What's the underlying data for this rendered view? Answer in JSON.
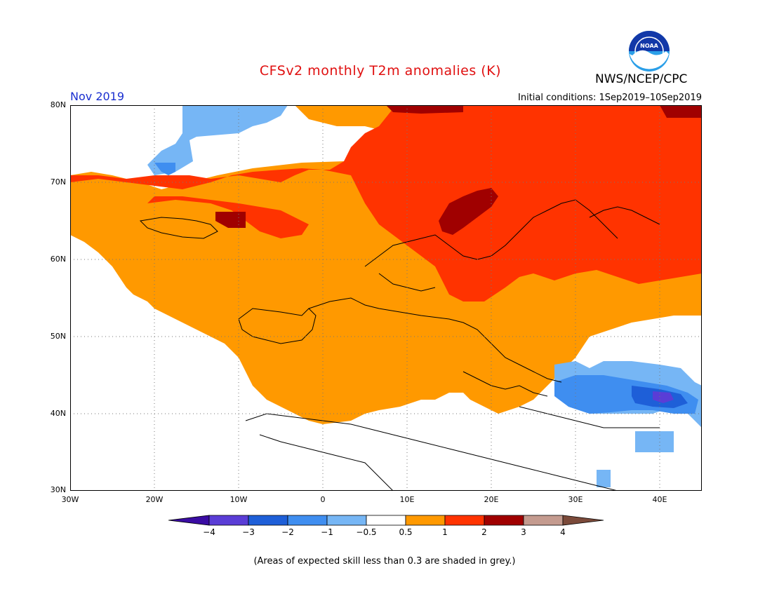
{
  "title": "CFSv2 monthly T2m anomalies (K)",
  "period": "Nov 2019",
  "initial_conditions": "Initial conditions: 1Sep2019–10Sep2019",
  "agency": "NWS/NCEP/CPC",
  "logo": {
    "name": "noaa-logo",
    "text": "NOAA",
    "icon": "noaa-seal"
  },
  "map": {
    "extent": {
      "lon_min": -30,
      "lon_max": 45,
      "lat_min": 30,
      "lat_max": 80
    },
    "lat_labels": [
      {
        "value": 80,
        "text": "80N"
      },
      {
        "value": 70,
        "text": "70N"
      },
      {
        "value": 60,
        "text": "60N"
      },
      {
        "value": 50,
        "text": "50N"
      },
      {
        "value": 40,
        "text": "40N"
      },
      {
        "value": 30,
        "text": "30N"
      }
    ],
    "lon_labels": [
      {
        "value": -30,
        "text": "30W"
      },
      {
        "value": -20,
        "text": "20W"
      },
      {
        "value": -10,
        "text": "10W"
      },
      {
        "value": 0,
        "text": "0"
      },
      {
        "value": 10,
        "text": "10E"
      },
      {
        "value": 20,
        "text": "20E"
      },
      {
        "value": 30,
        "text": "30E"
      },
      {
        "value": 40,
        "text": "40E"
      }
    ],
    "anomaly_regions": [
      {
        "category": "1 to 2",
        "color": "#ff3300",
        "region": "northern band"
      },
      {
        "category": "0.5 to 1",
        "color": "#ff9900",
        "region": "central europe"
      },
      {
        "category": "2 to 3",
        "color": "#a00000",
        "region": "scandinavia"
      },
      {
        "category": "-1 to -0.5",
        "color": "#76b6f5",
        "region": "greenland sea"
      },
      {
        "category": "-2 to -1",
        "color": "#3f8ef0",
        "region": "black sea"
      },
      {
        "category": "-3 to -2",
        "color": "#1e5fd8",
        "region": "black sea core"
      },
      {
        "category": "-4 to -3",
        "color": "#5a3dd6",
        "region": "caucasus"
      }
    ]
  },
  "colorbar": {
    "colors": [
      "#3a0ca3",
      "#5a3dd6",
      "#1e5fd8",
      "#3f8ef0",
      "#76b6f5",
      "#ffffff",
      "#ff9900",
      "#ff3300",
      "#a00000",
      "#c49b8f",
      "#7b4a3a"
    ],
    "labels": [
      "−4",
      "−3",
      "−2",
      "−1",
      "−0.5",
      "0.5",
      "1",
      "2",
      "3",
      "4"
    ]
  },
  "note": "(Areas of expected skill less than 0.3 are shaded in grey.)"
}
